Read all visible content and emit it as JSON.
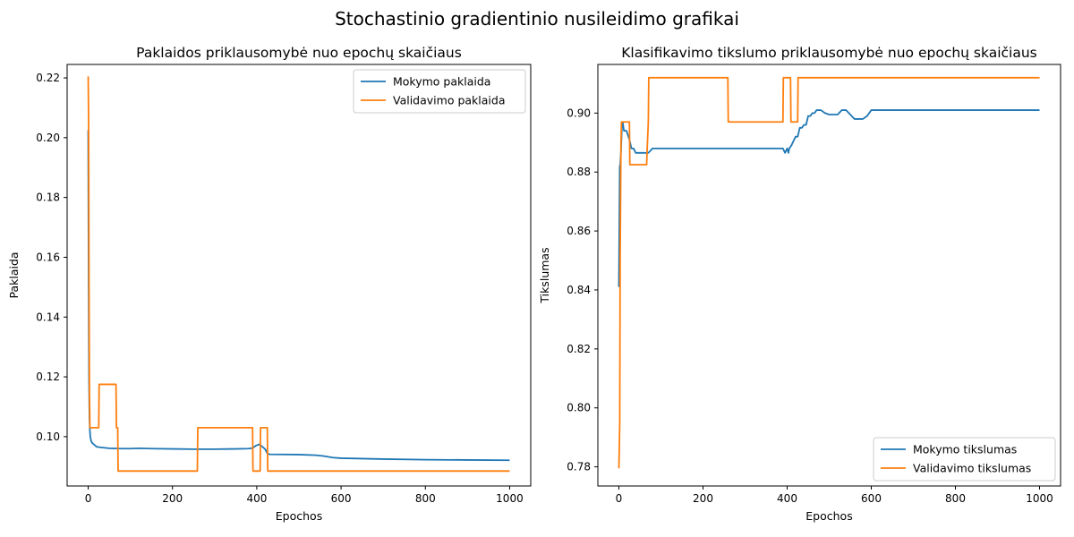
{
  "figure": {
    "suptitle": "Stochastinio gradientinio nusileidimo grafikai"
  },
  "colors": {
    "series1": "#1f77b4",
    "series2": "#ff7f0e",
    "axes": "#000000",
    "legend_border": "#cccccc"
  },
  "chart_data": [
    {
      "type": "line",
      "title": "Paklaidos priklausomybė nuo epochų skaičiaus",
      "xlabel": "Epochos",
      "ylabel": "Paklaida",
      "xlim": [
        -50,
        1050
      ],
      "ylim": [
        0.0835,
        0.2245
      ],
      "xticks": [
        0,
        200,
        400,
        600,
        800,
        1000
      ],
      "yticks": [
        0.1,
        0.12,
        0.14,
        0.16,
        0.18,
        0.2,
        0.22
      ],
      "yticks_labels": [
        "0.10",
        "0.12",
        "0.14",
        "0.16",
        "0.18",
        "0.20",
        "0.22"
      ],
      "grid": false,
      "legend_position": "top-right",
      "series": [
        {
          "name": "Mokymo paklaida",
          "color": "#1f77b4",
          "x": [
            0,
            1,
            2,
            3,
            4,
            5,
            7,
            10,
            15,
            20,
            30,
            50,
            80,
            100,
            120,
            150,
            200,
            250,
            300,
            350,
            380,
            390,
            398,
            405,
            412,
            420,
            425,
            430,
            500,
            540,
            560,
            580,
            600,
            700,
            800,
            900,
            1000
          ],
          "y": [
            0.2025,
            0.15,
            0.118,
            0.106,
            0.102,
            0.1,
            0.0985,
            0.0978,
            0.0972,
            0.0966,
            0.0964,
            0.0961,
            0.096,
            0.096,
            0.0961,
            0.096,
            0.0959,
            0.0958,
            0.0958,
            0.0959,
            0.096,
            0.0962,
            0.097,
            0.0974,
            0.0968,
            0.0958,
            0.0944,
            0.0941,
            0.094,
            0.0938,
            0.0935,
            0.093,
            0.0928,
            0.0925,
            0.0923,
            0.0922,
            0.0921
          ]
        },
        {
          "name": "Validavimo paklaida",
          "color": "#ff7f0e",
          "x": [
            0,
            1,
            2,
            3,
            4,
            5,
            6,
            25,
            26,
            66,
            67,
            70,
            71,
            259,
            260,
            390,
            391,
            408,
            409,
            425,
            426,
            1000
          ],
          "y": [
            0.2205,
            0.205,
            0.15,
            0.115,
            0.103,
            0.103,
            0.103,
            0.103,
            0.1175,
            0.1175,
            0.103,
            0.103,
            0.0885,
            0.0885,
            0.103,
            0.103,
            0.0885,
            0.0885,
            0.103,
            0.103,
            0.0885,
            0.0885
          ]
        }
      ]
    },
    {
      "type": "line",
      "title": "Klasifikavimo tikslumo priklausomybė nuo epochų skaičiaus",
      "xlabel": "Epochos",
      "ylabel": "Tikslumas",
      "xlim": [
        -50,
        1050
      ],
      "ylim": [
        0.7735,
        0.9165
      ],
      "xticks": [
        0,
        200,
        400,
        600,
        800,
        1000
      ],
      "yticks": [
        0.78,
        0.8,
        0.82,
        0.84,
        0.86,
        0.88,
        0.9
      ],
      "yticks_labels": [
        "0.78",
        "0.80",
        "0.82",
        "0.84",
        "0.86",
        "0.88",
        "0.90"
      ],
      "grid": false,
      "legend_position": "bottom-right",
      "series": [
        {
          "name": "Mokymo tikslumas",
          "color": "#1f77b4",
          "x": [
            0,
            2,
            3,
            5,
            7,
            9,
            10,
            12,
            15,
            18,
            25,
            30,
            35,
            40,
            60,
            70,
            80,
            100,
            200,
            300,
            390,
            395,
            400,
            403,
            405,
            410,
            415,
            420,
            425,
            430,
            435,
            440,
            445,
            450,
            455,
            460,
            465,
            470,
            480,
            490,
            500,
            510,
            520,
            530,
            540,
            550,
            560,
            570,
            580,
            590,
            600,
            700,
            800,
            900,
            1000
          ],
          "y": [
            0.841,
            0.882,
            0.882,
            0.887,
            0.895,
            0.897,
            0.896,
            0.894,
            0.894,
            0.894,
            0.891,
            0.888,
            0.888,
            0.8865,
            0.8865,
            0.8865,
            0.888,
            0.888,
            0.888,
            0.888,
            0.888,
            0.8865,
            0.888,
            0.8865,
            0.888,
            0.889,
            0.8905,
            0.892,
            0.892,
            0.895,
            0.895,
            0.896,
            0.896,
            0.899,
            0.899,
            0.9,
            0.9,
            0.901,
            0.901,
            0.9,
            0.8995,
            0.8995,
            0.8995,
            0.901,
            0.901,
            0.8995,
            0.898,
            0.898,
            0.898,
            0.899,
            0.901,
            0.901,
            0.901,
            0.901,
            0.901
          ]
        },
        {
          "name": "Validavimo tikslumas",
          "color": "#ff7f0e",
          "x": [
            0,
            2,
            3,
            5,
            6,
            25,
            26,
            66,
            67,
            70,
            71,
            259,
            260,
            390,
            391,
            408,
            409,
            425,
            426,
            1000
          ],
          "y": [
            0.7795,
            0.7945,
            0.85,
            0.89,
            0.897,
            0.897,
            0.8825,
            0.8825,
            0.887,
            0.897,
            0.912,
            0.912,
            0.897,
            0.897,
            0.912,
            0.912,
            0.897,
            0.897,
            0.912,
            0.912
          ]
        }
      ]
    }
  ]
}
